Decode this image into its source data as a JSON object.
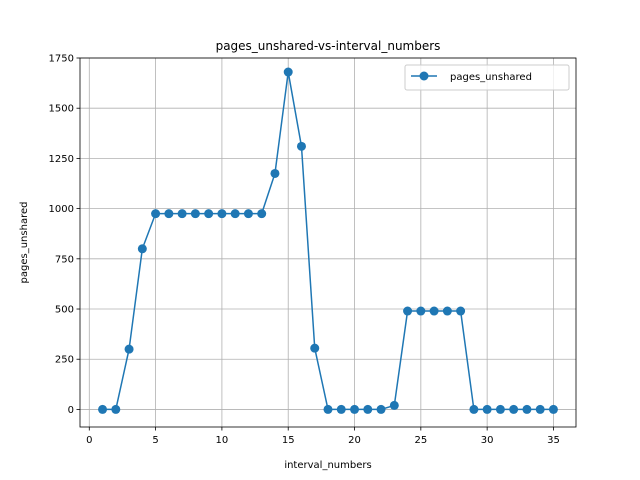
{
  "chart_data": {
    "type": "line",
    "title": "pages_unshared-vs-interval_numbers",
    "xlabel": "interval_numbers",
    "ylabel": "pages_unshared",
    "xlim": [
      -0.7,
      36.7
    ],
    "ylim": [
      -87.5,
      1750
    ],
    "xticks": [
      0,
      5,
      10,
      15,
      20,
      25,
      30,
      35
    ],
    "yticks": [
      0,
      250,
      500,
      750,
      1000,
      1250,
      1500,
      1750
    ],
    "grid": true,
    "legend_position": "top-right",
    "series": [
      {
        "name": "pages_unshared",
        "color": "#1f77b4",
        "marker": "circle",
        "x": [
          1,
          2,
          3,
          4,
          5,
          6,
          7,
          8,
          9,
          10,
          11,
          12,
          13,
          14,
          15,
          16,
          17,
          18,
          19,
          20,
          21,
          22,
          23,
          24,
          25,
          26,
          27,
          28,
          29,
          30,
          31,
          32,
          33,
          34,
          35
        ],
        "y": [
          0,
          0,
          300,
          800,
          975,
          975,
          975,
          975,
          975,
          975,
          975,
          975,
          975,
          1175,
          1680,
          1310,
          305,
          0,
          0,
          0,
          0,
          0,
          20,
          490,
          490,
          490,
          490,
          490,
          0,
          0,
          0,
          0,
          0,
          0,
          0
        ]
      }
    ]
  }
}
